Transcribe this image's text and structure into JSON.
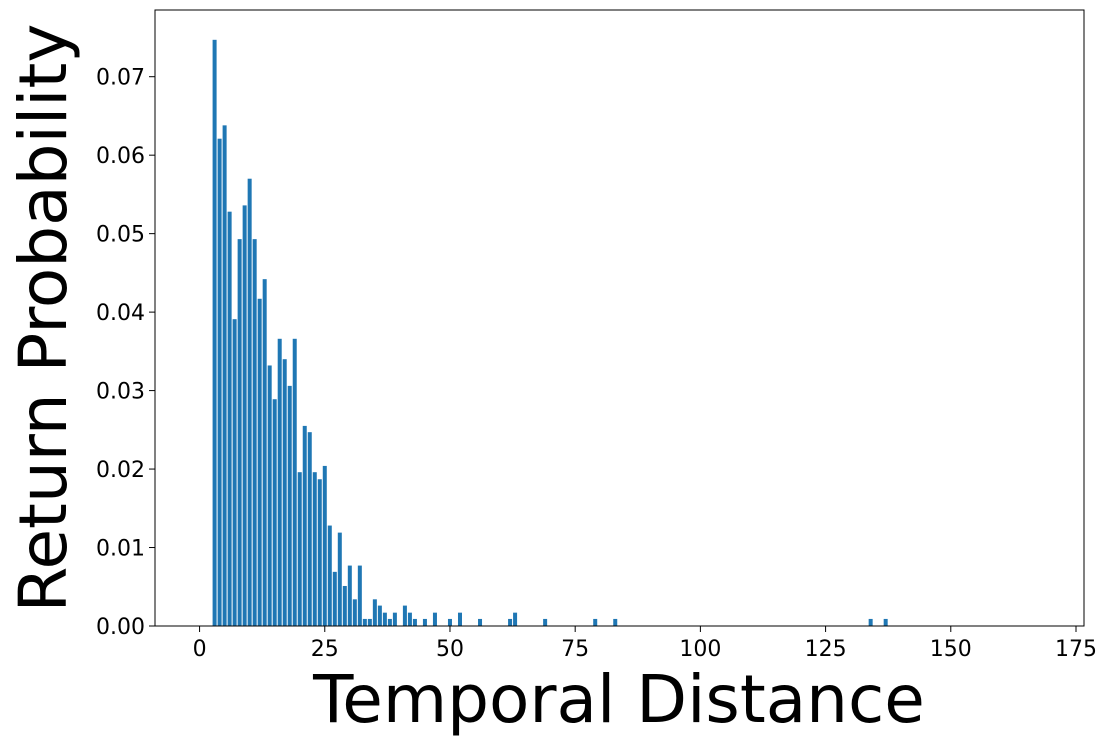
{
  "chart_data": {
    "type": "bar",
    "xlabel": "Temporal Distance",
    "ylabel": "Return Probability",
    "color": "#1f77b4",
    "x": [
      3,
      4,
      5,
      6,
      7,
      8,
      9,
      10,
      11,
      12,
      13,
      14,
      15,
      16,
      17,
      18,
      19,
      20,
      21,
      22,
      23,
      24,
      25,
      26,
      27,
      28,
      29,
      30,
      31,
      32,
      33,
      34,
      35,
      36,
      37,
      38,
      39,
      41,
      42,
      43,
      45,
      47,
      50,
      52,
      56,
      62,
      63,
      69,
      79,
      83,
      134,
      137
    ],
    "values": [
      0.0747,
      0.0621,
      0.0638,
      0.0528,
      0.0391,
      0.0493,
      0.0536,
      0.057,
      0.0493,
      0.0417,
      0.0442,
      0.0332,
      0.0289,
      0.0366,
      0.034,
      0.0306,
      0.0366,
      0.0196,
      0.0255,
      0.0247,
      0.0196,
      0.0187,
      0.0204,
      0.0128,
      0.0069,
      0.0119,
      0.0051,
      0.0077,
      0.0034,
      0.0077,
      0.0009,
      0.0009,
      0.0034,
      0.0026,
      0.0017,
      0.0009,
      0.0017,
      0.0026,
      0.0017,
      0.0009,
      0.0009,
      0.0017,
      0.0009,
      0.0017,
      0.0009,
      0.0009,
      0.0017,
      0.0009,
      0.0009,
      0.0009,
      0.0009,
      0.0009
    ],
    "xlim": [
      -8.9,
      176.6
    ],
    "ylim": [
      0,
      0.0785
    ],
    "xticks": [
      0,
      25,
      50,
      75,
      100,
      125,
      150,
      175
    ],
    "yticks": [
      {
        "value": 0,
        "label": "0.00"
      },
      0.01,
      0.02,
      0.03,
      0.04,
      0.05,
      0.06,
      0.07
    ]
  }
}
